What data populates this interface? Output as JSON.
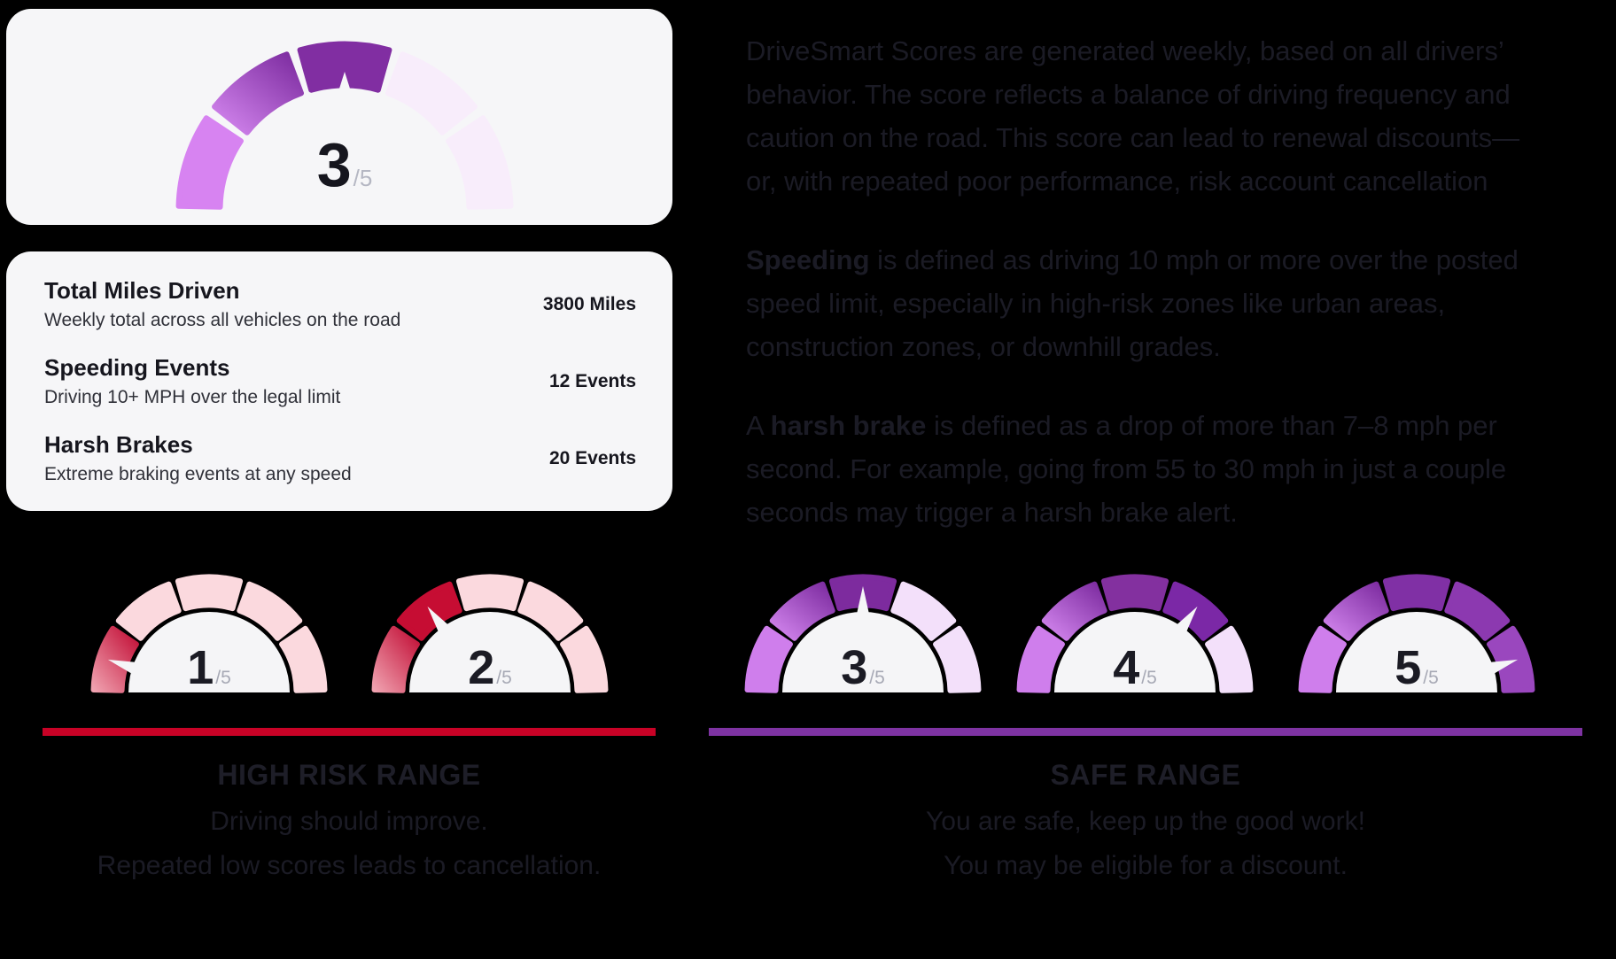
{
  "score_card": {
    "gauge": {
      "value": "3",
      "suffix": "/5",
      "score": 3,
      "segments": [
        "#d783f1",
        "grad-purple",
        "#812ea2",
        "#f8edfb",
        "#f8edfb"
      ]
    }
  },
  "stats_card": {
    "rows": [
      {
        "title": "Total Miles Driven",
        "description": "Weekly total across all vehicles on the road",
        "value": "3800 Miles"
      },
      {
        "title": "Speeding Events",
        "description": "Driving 10+ MPH over the legal limit",
        "value": "12 Events"
      },
      {
        "title": "Harsh Brakes",
        "description": "Extreme braking events at any speed",
        "value": "20 Events"
      }
    ]
  },
  "info": {
    "p1": [
      "DriveSmart Scores are generated weekly, based on all drivers’",
      "behavior. The score reflects a balance of driving frequency and",
      "caution on the road. This score can lead to renewal discounts—",
      "or, with repeated poor performance, risk account cancellation"
    ],
    "p2_bold": "Speeding",
    "p2_rest": [
      " is defined as driving 10 mph or more over the posted",
      "speed limit, especially in high-risk zones like urban areas,",
      "construction zones, or downhill grades."
    ],
    "p3_prefix": "A ",
    "p3_bold": "harsh brake",
    "p3_rest": [
      " is defined as a drop of more than 7–8 mph per",
      "second. For example, going from 55 to 30 mph in just a couple",
      "seconds may trigger a harsh brake alert."
    ]
  },
  "high_risk": {
    "title": "HIGH RISK RANGE",
    "description": [
      "Driving should improve.",
      "Repeated low scores leads to cancellation."
    ],
    "bar_color": "#c80226",
    "gauges": [
      {
        "value": "1",
        "suffix": "/5",
        "score": 1,
        "segments": [
          "grad-red",
          "#fbd9de",
          "#fbd9de",
          "#fbd9de",
          "#fbd9de"
        ]
      },
      {
        "value": "2",
        "suffix": "/5",
        "score": 2,
        "segments": [
          "grad-red",
          "#c60d33",
          "#fbd9de",
          "#fbd9de",
          "#fbd9de"
        ]
      }
    ]
  },
  "safe_range": {
    "title": "SAFE RANGE",
    "description": [
      "You are safe, keep up the good work!",
      "You may be eligible for a discount."
    ],
    "bar_color": "#7e33a2",
    "gauges": [
      {
        "value": "3",
        "suffix": "/5",
        "score": 3,
        "segments": [
          "#cf7eec",
          "grad-purple",
          "#7d2b9e",
          "#f3e0fa",
          "#f3e0fa"
        ]
      },
      {
        "value": "4",
        "suffix": "/5",
        "score": 4,
        "segments": [
          "#cf7eec",
          "grad-purple",
          "#83309f",
          "#7b28a6",
          "#f3e0fa"
        ]
      },
      {
        "value": "5",
        "suffix": "/5",
        "score": 5,
        "segments": [
          "#cf7eec",
          "grad-purple",
          "#8030a5",
          "#8c39b0",
          "#9a47be"
        ]
      }
    ]
  },
  "colors": {
    "page_bg": "#000000",
    "card_bg": "#f6f6f8",
    "gauge_inner": "#f5f5f7",
    "risk_accent": "#c80226",
    "safe_accent": "#7e33a2"
  }
}
